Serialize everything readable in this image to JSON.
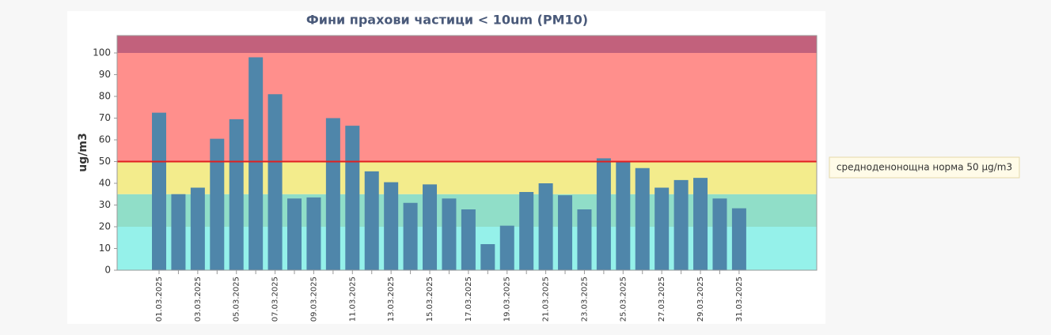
{
  "chart_data": {
    "type": "bar",
    "title": "Фини прахови частици < 10um (PM10)",
    "y_label": "ug/m3",
    "categories": [
      "01.03.2025",
      null,
      "03.03.2025",
      null,
      "05.03.2025",
      null,
      "07.03.2025",
      null,
      "09.03.2025",
      null,
      "11.03.2025",
      null,
      "13.03.2025",
      null,
      "15.03.2025",
      null,
      "17.03.2025",
      null,
      "19.03.2025",
      null,
      "21.03.2025",
      null,
      "23.03.2025",
      null,
      "25.03.2025",
      null,
      "27.03.2025",
      null,
      "29.03.2025",
      null,
      "31.03.2025"
    ],
    "values": [
      72.5,
      35,
      38,
      60.5,
      69.5,
      98,
      81,
      33,
      33.5,
      70,
      66.5,
      45.5,
      40.5,
      31,
      39.5,
      33,
      28,
      12,
      20.5,
      36,
      40,
      34.5,
      28,
      51.5,
      50,
      47,
      38,
      41.5,
      42.5,
      33,
      28.5
    ],
    "color": "#4f86aa",
    "ylim": [
      0,
      108
    ],
    "yticks": [
      0,
      10,
      20,
      30,
      40,
      50,
      60,
      70,
      80,
      90,
      100
    ],
    "bands": [
      {
        "from": 0,
        "to": 20,
        "color": "#95f1ea"
      },
      {
        "from": 20,
        "to": 35,
        "color": "#90dec8"
      },
      {
        "from": 35,
        "to": 50,
        "color": "#f3ec8c"
      },
      {
        "from": 50,
        "to": 100,
        "color": "#ff8f8c"
      },
      {
        "from": 100,
        "to": 108,
        "color": "#c2617c"
      }
    ],
    "threshold": {
      "value": 50,
      "color": "#e02020",
      "label": "средноденонощна норма 50 µg/m3"
    }
  }
}
